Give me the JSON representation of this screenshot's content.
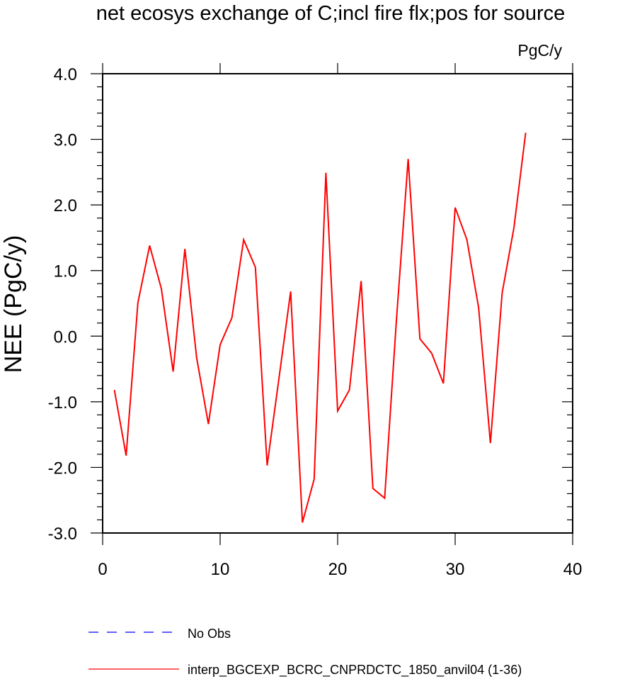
{
  "chart_data": {
    "type": "line",
    "title": "net ecosys exchange of C;incl fire flx;pos for source",
    "units": "PgC/y",
    "xlabel": "",
    "ylabel": "NEE  (PgC/y)",
    "xlim": [
      0,
      40
    ],
    "ylim": [
      -3.0,
      4.0
    ],
    "xticks": [
      0,
      10,
      20,
      30,
      40
    ],
    "xtick_labels": [
      "0",
      "10",
      "20",
      "30",
      "40"
    ],
    "yticks": [
      -3,
      -2,
      -1,
      0,
      1,
      2,
      3,
      4
    ],
    "ytick_labels": [
      "-3.0",
      "-2.0",
      "-1.0",
      "0.0",
      "1.0",
      "2.0",
      "3.0",
      "4.0"
    ],
    "grid": false,
    "legend_position": "bottom-left",
    "series": [
      {
        "name": "interp_BGCEXP_BCRC_CNPRDCTC_1850_anvil04 (1-36)",
        "color": "#ff0000",
        "style": "solid",
        "x": [
          1,
          2,
          3,
          4,
          5,
          6,
          7,
          8,
          9,
          10,
          11,
          12,
          13,
          14,
          15,
          16,
          17,
          18,
          19,
          20,
          21,
          22,
          23,
          24,
          25,
          26,
          27,
          28,
          29,
          30,
          31,
          32,
          33,
          34,
          35,
          36
        ],
        "y": [
          -0.82,
          -1.82,
          0.51,
          1.38,
          0.72,
          -0.54,
          1.33,
          -0.33,
          -1.34,
          -0.13,
          0.28,
          1.47,
          1.05,
          -1.97,
          -0.65,
          0.68,
          -2.84,
          -2.18,
          2.49,
          -1.14,
          -0.82,
          0.84,
          -2.32,
          -2.47,
          0.24,
          2.7,
          -0.04,
          -0.26,
          -0.72,
          1.96,
          1.47,
          0.43,
          -1.63,
          0.66,
          1.65,
          3.1
        ]
      }
    ],
    "legend": [
      {
        "label": "No Obs",
        "color": "#0000ff",
        "style": "dashed"
      },
      {
        "label": "interp_BGCEXP_BCRC_CNPRDCTC_1850_anvil04 (1-36)",
        "color": "#ff0000",
        "style": "solid"
      }
    ]
  }
}
